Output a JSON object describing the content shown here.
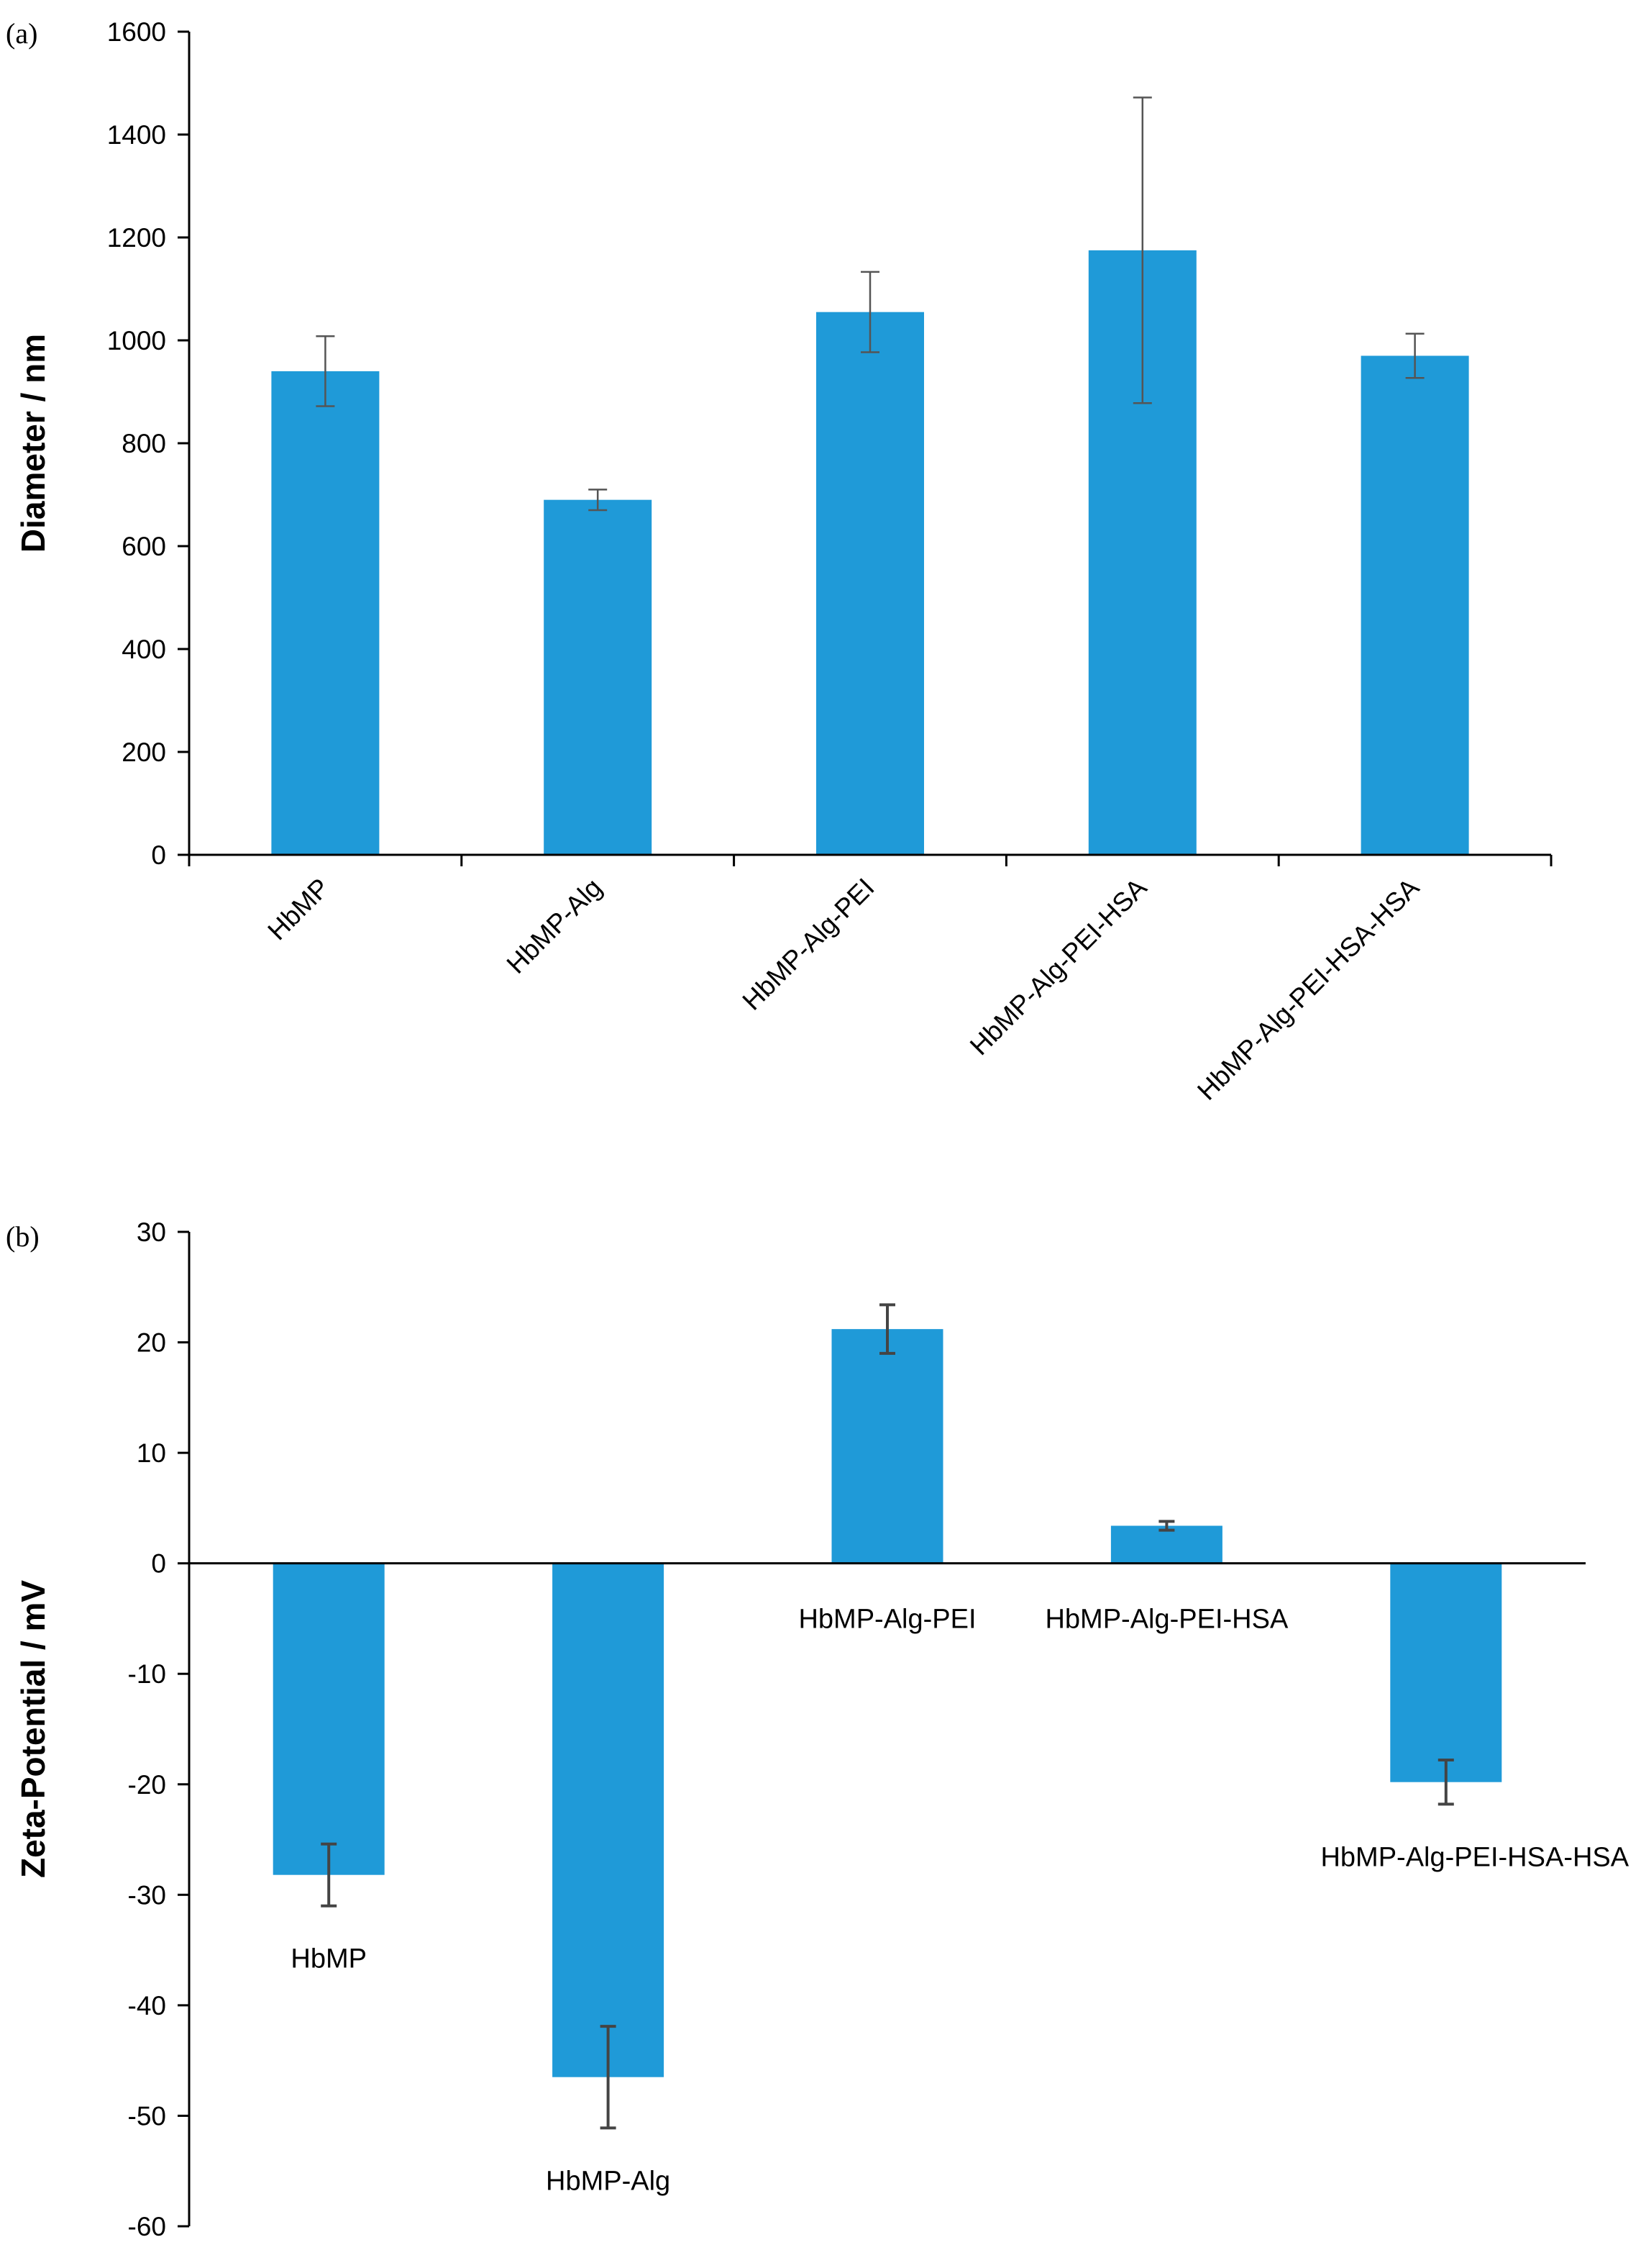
{
  "chart_data": [
    {
      "panel": "(a)",
      "type": "bar",
      "title": "",
      "xlabel": "",
      "ylabel": "Diameter / nm",
      "ylim": [
        0,
        1600
      ],
      "yticks": [
        0,
        200,
        400,
        600,
        800,
        1000,
        1200,
        1400,
        1600
      ],
      "categories": [
        "HbMP",
        "HbMP-Alg",
        "HbMP-Alg-PEI",
        "HbMP-Alg-PEI-HSA",
        "HbMP-Alg-PEI-HSA-HSA"
      ],
      "values": [
        940,
        690,
        1055,
        1175,
        970
      ],
      "errors": [
        68,
        20,
        78,
        297,
        43
      ],
      "grid": false,
      "bar_color": "#1f9ad8"
    },
    {
      "panel": "(b)",
      "type": "bar",
      "title": "",
      "xlabel": "",
      "ylabel": "Zeta-Potential / mV",
      "ylim": [
        -60,
        30
      ],
      "yticks": [
        -60,
        -50,
        -40,
        -30,
        -20,
        -10,
        0,
        10,
        20,
        30
      ],
      "categories": [
        "HbMP",
        "HbMP-Alg",
        "HbMP-Alg-PEI",
        "HbMP-Alg-PEI-HSA",
        "HbMP-Alg-PEI-HSA-HSA"
      ],
      "values": [
        -28.2,
        -46.5,
        21.2,
        3.4,
        -19.8
      ],
      "errors": [
        2.8,
        4.6,
        2.2,
        0.4,
        2.0
      ],
      "grid": false,
      "bar_color": "#1f9ad8"
    }
  ]
}
